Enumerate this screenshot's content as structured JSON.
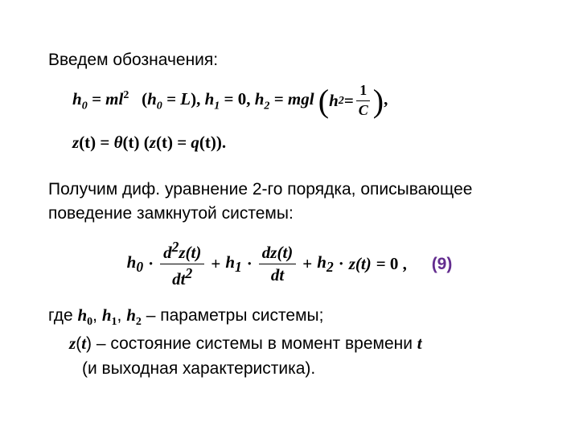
{
  "colors": {
    "text": "#000000",
    "background": "#ffffff",
    "eq_number": "#632d8f"
  },
  "typography": {
    "body_font": "Arial",
    "math_font": "Times New Roman",
    "body_size_pt": 16,
    "math_weight": "bold"
  },
  "intro": "Введем обозначения:",
  "defs": {
    "h0_eq": "h",
    "h0_sub": "0",
    "h0_rhs": " = ml",
    "h0_sup": "2",
    "h0_alt_open": "(",
    "h0_alt": "h",
    "h0_alt_sub": "0",
    "h0_alt_rhs": " = L",
    "h0_alt_close": ")",
    "sep1": ",   ",
    "h1": "h",
    "h1_sub": "1",
    "h1_rhs": " = 0,   ",
    "h2": "h",
    "h2_sub": "2",
    "h2_rhs": " = mgl  ",
    "h2_alt": "h",
    "h2_alt_sub": "2",
    "h2_alt_eq": " = ",
    "h2_frac_num": "1",
    "h2_frac_den": "C",
    "end1": ",",
    "z_def_l": "z",
    "z_def_arg": "(t)",
    "z_def_eq": " = ",
    "z_def_r": "θ",
    "z_def_r_arg": "(t)",
    "z_def_alt_open": "  (",
    "z_def_alt_l": "z",
    "z_def_alt_l_arg": "(t)",
    "z_def_alt_eq": " = ",
    "z_def_alt_r": "q",
    "z_def_alt_r_arg": "(t)",
    "z_def_alt_close": ")",
    "end2": "."
  },
  "para2_line1": "Получим диф. уравнение 2-го порядка, описывающее",
  "para2_line2": "поведение замкнутой системы:",
  "main_eq": {
    "h0": "h",
    "h0_sub": "0",
    "dot1": " · ",
    "frac1_num_a": "d",
    "frac1_num_sup": "2",
    "frac1_num_b": "z",
    "frac1_num_arg": "(t)",
    "frac1_den_a": "dt",
    "frac1_den_sup": "2",
    "plus1": " + ",
    "h1": "h",
    "h1_sub": "1",
    "dot2": " · ",
    "frac2_num_a": "dz",
    "frac2_num_arg": "(t)",
    "frac2_den": "dt",
    "plus2": " + ",
    "h2": "h",
    "h2_sub": "2",
    "dot3": " · ",
    "z": "z",
    "z_arg": "(t)",
    "eq_zero": " =  0",
    "comma": " ,"
  },
  "eq_number": "(9)",
  "where": {
    "prefix": "где   ",
    "h0": "h",
    "h0_sub": "0",
    "c1": ", ",
    "h1": "h",
    "h1_sub": "1",
    "c2": ", ",
    "h2": "h",
    "h2_sub": "2",
    "suffix1": "  – параметры системы;",
    "z": "z",
    "z_arg_open": "(",
    "z_arg": "t",
    "z_arg_close": ")",
    "suffix2": "  –  состояние системы в момент времени ",
    "t": "t",
    "suffix3": "(и выходная характеристика)."
  }
}
